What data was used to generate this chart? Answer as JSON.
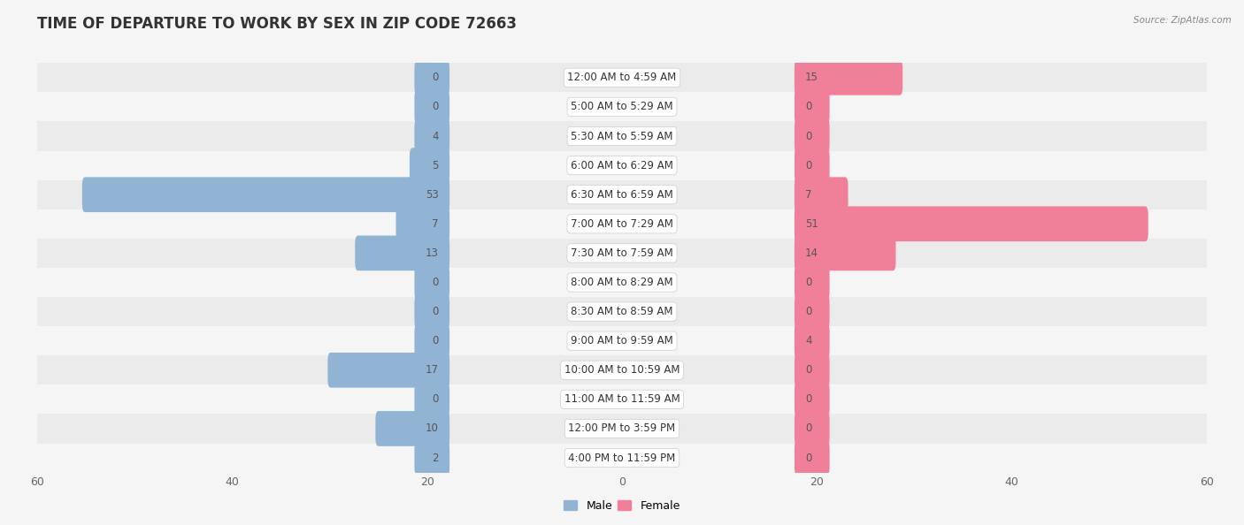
{
  "title": "TIME OF DEPARTURE TO WORK BY SEX IN ZIP CODE 72663",
  "source": "Source: ZipAtlas.com",
  "categories": [
    "12:00 AM to 4:59 AM",
    "5:00 AM to 5:29 AM",
    "5:30 AM to 5:59 AM",
    "6:00 AM to 6:29 AM",
    "6:30 AM to 6:59 AM",
    "7:00 AM to 7:29 AM",
    "7:30 AM to 7:59 AM",
    "8:00 AM to 8:29 AM",
    "8:30 AM to 8:59 AM",
    "9:00 AM to 9:59 AM",
    "10:00 AM to 10:59 AM",
    "11:00 AM to 11:59 AM",
    "12:00 PM to 3:59 PM",
    "4:00 PM to 11:59 PM"
  ],
  "male_values": [
    0,
    0,
    4,
    5,
    53,
    7,
    13,
    0,
    0,
    0,
    17,
    0,
    10,
    2
  ],
  "female_values": [
    15,
    0,
    0,
    0,
    7,
    51,
    14,
    0,
    0,
    4,
    0,
    0,
    0,
    0
  ],
  "male_color": "#92b4d4",
  "female_color": "#f08099",
  "male_label": "Male",
  "female_label": "Female",
  "xlim": 60,
  "bg_color": "#f5f5f5",
  "row_odd_color": "#ebebeb",
  "row_even_color": "#f5f5f5",
  "title_fontsize": 12,
  "label_fontsize": 8.5,
  "value_fontsize": 8.5,
  "axis_fontsize": 9,
  "bar_height": 0.6,
  "min_bar_stub": 3
}
